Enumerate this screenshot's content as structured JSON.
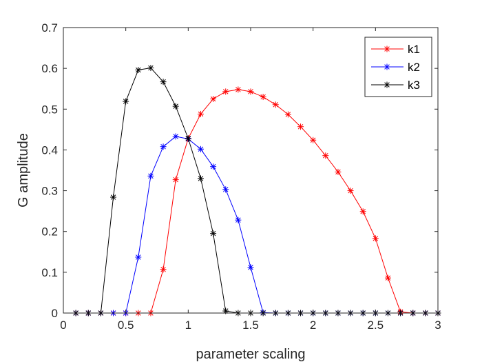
{
  "chart_data": {
    "type": "line",
    "title": "",
    "xlabel": "parameter scaling",
    "ylabel": "G amplitude",
    "xlim": [
      0,
      3
    ],
    "ylim": [
      0,
      0.7
    ],
    "xticks": [
      0,
      0.5,
      1,
      1.5,
      2,
      2.5,
      3
    ],
    "yticks": [
      0,
      0.1,
      0.2,
      0.3,
      0.4,
      0.5,
      0.6,
      0.7
    ],
    "xtick_labels": [
      "0",
      "0.5",
      "1",
      "1.5",
      "2",
      "2.5",
      "3"
    ],
    "ytick_labels": [
      "0",
      "0.1",
      "0.2",
      "0.3",
      "0.4",
      "0.5",
      "0.6",
      "0.7"
    ],
    "grid": false,
    "legend_position": "top-right",
    "marker": "asterisk",
    "x": [
      0.1,
      0.2,
      0.3,
      0.4,
      0.5,
      0.6,
      0.7,
      0.8,
      0.9,
      1.0,
      1.1,
      1.2,
      1.3,
      1.4,
      1.5,
      1.6,
      1.7,
      1.8,
      1.9,
      2.0,
      2.1,
      2.2,
      2.3,
      2.4,
      2.5,
      2.6,
      2.7,
      2.8,
      2.9,
      3.0
    ],
    "series": [
      {
        "name": "k1",
        "color": "#ff0000",
        "values": [
          0,
          0,
          0,
          0,
          0,
          0,
          0,
          0.107,
          0.327,
          0.428,
          0.488,
          0.525,
          0.543,
          0.548,
          0.543,
          0.53,
          0.511,
          0.487,
          0.457,
          0.424,
          0.386,
          0.346,
          0.3,
          0.249,
          0.183,
          0.086,
          0.003,
          0,
          0,
          0
        ]
      },
      {
        "name": "k2",
        "color": "#0000ff",
        "values": [
          0,
          0,
          0,
          0,
          0,
          0.137,
          0.336,
          0.408,
          0.433,
          0.427,
          0.402,
          0.359,
          0.303,
          0.228,
          0.112,
          0.001,
          0,
          0,
          0,
          0,
          0,
          0,
          0,
          0,
          0,
          0,
          0,
          0,
          0,
          0
        ]
      },
      {
        "name": "k3",
        "color": "#000000",
        "values": [
          0,
          0,
          0,
          0.284,
          0.519,
          0.596,
          0.601,
          0.567,
          0.507,
          0.428,
          0.33,
          0.195,
          0.005,
          0,
          0,
          0,
          0,
          0,
          0,
          0,
          0,
          0,
          0,
          0,
          0,
          0,
          0,
          0,
          0,
          0
        ]
      }
    ]
  }
}
